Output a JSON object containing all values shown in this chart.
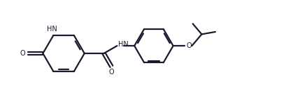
{
  "bg_color": "#ffffff",
  "line_color": "#1a1a2e",
  "line_width": 1.6,
  "figsize": [
    4.1,
    1.5
  ],
  "dpi": 100,
  "xlim": [
    0.0,
    4.1
  ],
  "ylim": [
    0.0,
    1.5
  ]
}
